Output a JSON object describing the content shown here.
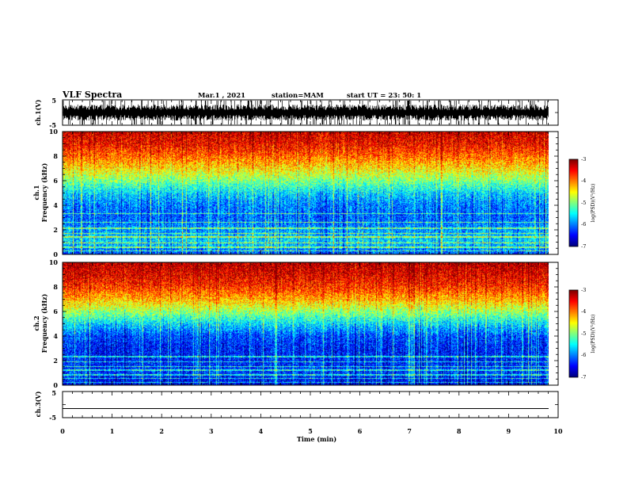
{
  "header": {
    "title": "VLF Spectra",
    "date": "Mar.1 , 2021",
    "station": "station=MAM",
    "start": "start UT = 23: 50: 1"
  },
  "chart_data": [
    {
      "type": "line",
      "name": "ch1-waveform",
      "ylabel": "ch.1(V)",
      "ylim": [
        -5,
        5
      ],
      "yticks": [
        "5",
        "-5"
      ],
      "xlim": [
        0,
        10
      ],
      "note_colors": {
        "trace": "#000000"
      }
    },
    {
      "type": "heatmap",
      "name": "ch1-spectrogram",
      "ylabel": "ch.1\nFrequency (kHz)",
      "ylabel_lines": [
        "ch.1",
        "Frequency (kHz)"
      ],
      "xlim": [
        0,
        9.83
      ],
      "ylim": [
        0,
        10
      ],
      "yticks": [
        "0",
        "2",
        "4",
        "6",
        "8",
        "10"
      ],
      "colorbar": {
        "label": "log(PSD)(V²/Hz)",
        "range": [
          -7,
          -3
        ],
        "ticks": [
          "-3",
          "-4",
          "-5",
          "-6",
          "-7"
        ]
      },
      "typical_log_psd_by_khz": [
        [
          0,
          -6.2
        ],
        [
          1,
          -5.6
        ],
        [
          2,
          -5.9
        ],
        [
          3,
          -6.1
        ],
        [
          4,
          -6.0
        ],
        [
          5,
          -5.6
        ],
        [
          6,
          -5.0
        ],
        [
          7,
          -4.4
        ],
        [
          8,
          -3.9
        ],
        [
          9,
          -3.5
        ],
        [
          10,
          -3.3
        ]
      ]
    },
    {
      "type": "heatmap",
      "name": "ch2-spectrogram",
      "ylabel": "ch.2\nFrequency (kHz)",
      "ylabel_lines": [
        "ch.2",
        "Frequency (kHz)"
      ],
      "xlim": [
        0,
        9.83
      ],
      "ylim": [
        0,
        10
      ],
      "yticks": [
        "0",
        "2",
        "4",
        "6",
        "8",
        "10"
      ],
      "colorbar": {
        "label": "log(PSD)(V²/Hz)",
        "range": [
          -7,
          -3
        ],
        "ticks": [
          "-3",
          "-4",
          "-5",
          "-6",
          "-7"
        ]
      },
      "typical_log_psd_by_khz": [
        [
          0,
          -6.6
        ],
        [
          1,
          -6.3
        ],
        [
          2,
          -6.4
        ],
        [
          3,
          -6.4
        ],
        [
          4,
          -6.2
        ],
        [
          5,
          -5.6
        ],
        [
          6,
          -4.9
        ],
        [
          7,
          -4.2
        ],
        [
          8,
          -3.7
        ],
        [
          9,
          -3.4
        ],
        [
          10,
          -3.2
        ]
      ]
    },
    {
      "type": "line",
      "name": "ch3-waveform",
      "ylabel": "ch.3(V)",
      "ylim": [
        -5,
        5
      ],
      "yticks": [
        "5",
        "-5"
      ],
      "values": {
        "constant": -1.5
      },
      "xlim": [
        0,
        10
      ]
    }
  ],
  "xaxis": {
    "label": "Time (min)",
    "ticks": [
      "0",
      "1",
      "2",
      "3",
      "4",
      "5",
      "6",
      "7",
      "8",
      "9",
      "10"
    ],
    "range": [
      0,
      10
    ]
  }
}
